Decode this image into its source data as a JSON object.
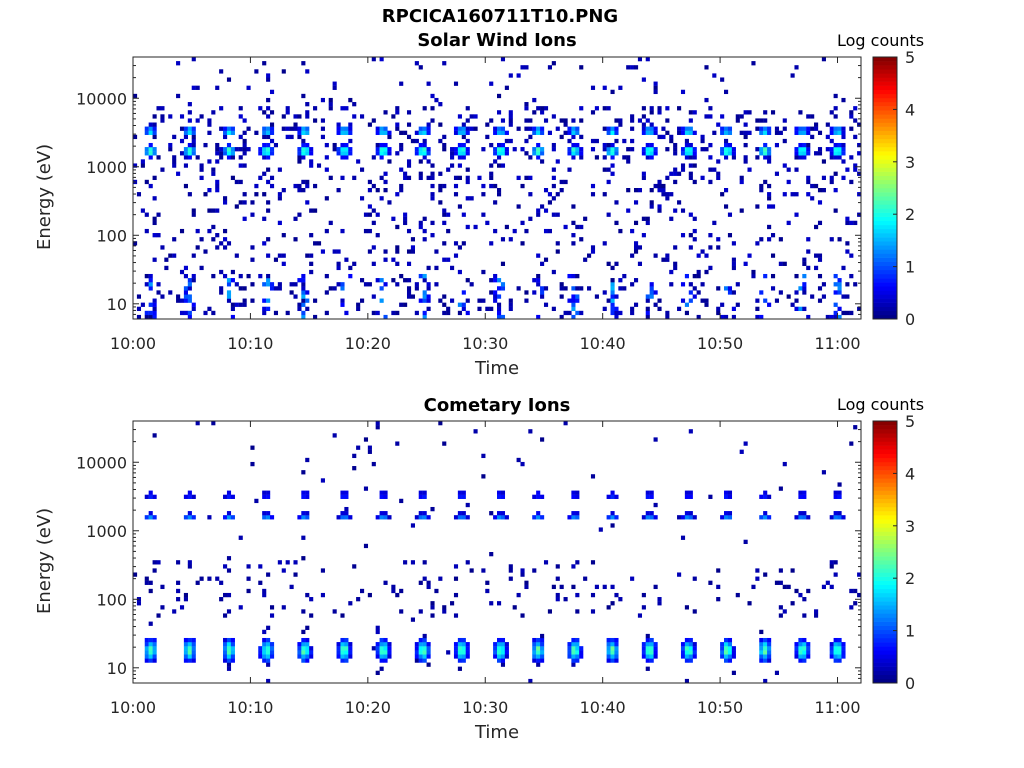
{
  "figure_title": "RPCICA160711T10.PNG",
  "colorbar": {
    "label": "Log counts",
    "ticks": [
      "0",
      "1",
      "2",
      "3",
      "4",
      "5"
    ],
    "range": [
      0,
      5
    ],
    "colormap": "jet"
  },
  "chart_data": [
    {
      "type": "heatmap",
      "title": "Solar Wind Ions",
      "xlabel": "Time",
      "ylabel": "Energy (eV)",
      "x_ticks": [
        "10:00",
        "10:10",
        "10:20",
        "10:30",
        "10:40",
        "10:50",
        "11:00"
      ],
      "x_range": [
        "10:00",
        "11:02"
      ],
      "y_scale": "log",
      "y_ticks": [
        "10",
        "100",
        "1000",
        "10000"
      ],
      "y_range": [
        6,
        40000
      ],
      "z_label": "Log counts",
      "z_range": [
        0,
        5
      ],
      "pulse_minutes": [
        1.5,
        4.8,
        8.2,
        11.4,
        14.6,
        18.0,
        21.3,
        24.7,
        28.0,
        31.3,
        34.5,
        37.6,
        40.8,
        44.0,
        47.3,
        50.6,
        53.8,
        57.0,
        60.0
      ],
      "features": [
        {
          "description": "solar wind proton peak",
          "energy_eV": 1700,
          "max_log_counts": 2.5
        },
        {
          "description": "solar wind alpha peak",
          "energy_eV": 3300,
          "max_log_counts": 2.0
        },
        {
          "description": "low-energy background",
          "energy_eV_range": [
            6,
            30
          ],
          "max_log_counts": 1.5
        }
      ]
    },
    {
      "type": "heatmap",
      "title": "Cometary Ions",
      "xlabel": "Time",
      "ylabel": "Energy (eV)",
      "x_ticks": [
        "10:00",
        "10:10",
        "10:20",
        "10:30",
        "10:40",
        "10:50",
        "11:00"
      ],
      "x_range": [
        "10:00",
        "11:02"
      ],
      "y_scale": "log",
      "y_ticks": [
        "10",
        "100",
        "1000",
        "10000"
      ],
      "y_range": [
        6,
        40000
      ],
      "z_label": "Log counts",
      "z_range": [
        0,
        5
      ],
      "pulse_minutes": [
        1.5,
        4.8,
        8.2,
        11.4,
        14.6,
        18.0,
        21.3,
        24.7,
        28.0,
        31.3,
        34.5,
        37.6,
        40.8,
        44.0,
        47.3,
        50.6,
        53.8,
        57.0,
        60.0
      ],
      "features": [
        {
          "description": "cometary ion peak",
          "energy_eV": 18,
          "max_log_counts": 2.3
        },
        {
          "description": "leaked proton band",
          "energy_eV": 1600,
          "max_log_counts": 1.3
        },
        {
          "description": "leaked alpha band",
          "energy_eV": 3300,
          "max_log_counts": 0.8
        }
      ]
    }
  ]
}
